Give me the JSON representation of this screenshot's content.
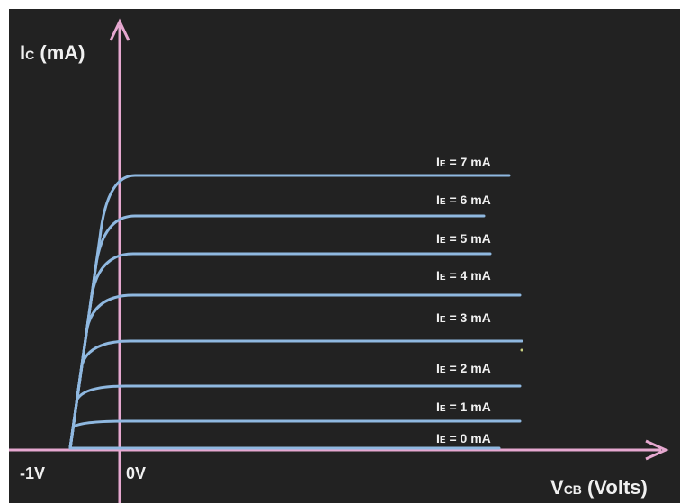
{
  "chart_data": {
    "type": "line",
    "y_axis_label": {
      "main": "I",
      "sub": "C",
      "unit": " (mA)"
    },
    "x_axis_label": {
      "main": "V",
      "sub": "CB",
      "unit": " (Volts)"
    },
    "x_tick_labels": [
      "-1V",
      "0V"
    ],
    "series": [
      {
        "name": "IE = 0 mA",
        "prefix": "I",
        "sub": "E",
        "text": " = 0 mA",
        "value": 0
      },
      {
        "name": "IE = 1 mA",
        "prefix": "I",
        "sub": "E",
        "text": " = 1 mA",
        "value": 1
      },
      {
        "name": "IE = 2 mA",
        "prefix": "I",
        "sub": "E",
        "text": " = 2 mA",
        "value": 2
      },
      {
        "name": "IE = 3 mA",
        "prefix": "I",
        "sub": "E",
        "text": " = 3 mA",
        "value": 3
      },
      {
        "name": "IE = 4 mA",
        "prefix": "I",
        "sub": "E",
        "text": " = 4 mA",
        "value": 4
      },
      {
        "name": "IE = 5 mA",
        "prefix": "I",
        "sub": "E",
        "text": " = 5 mA",
        "value": 5
      },
      {
        "name": "IE = 6 mA",
        "prefix": "I",
        "sub": "E",
        "text": " = 6 mA",
        "value": 6
      },
      {
        "name": "IE = 7 mA",
        "prefix": "I",
        "sub": "E",
        "text": " = 7 mA",
        "value": 7
      }
    ],
    "grid": false,
    "colors": {
      "background": "#222222",
      "axes": "#e6a8d0",
      "curves": "#8fb8e0",
      "text": "#f0f0f0"
    }
  }
}
